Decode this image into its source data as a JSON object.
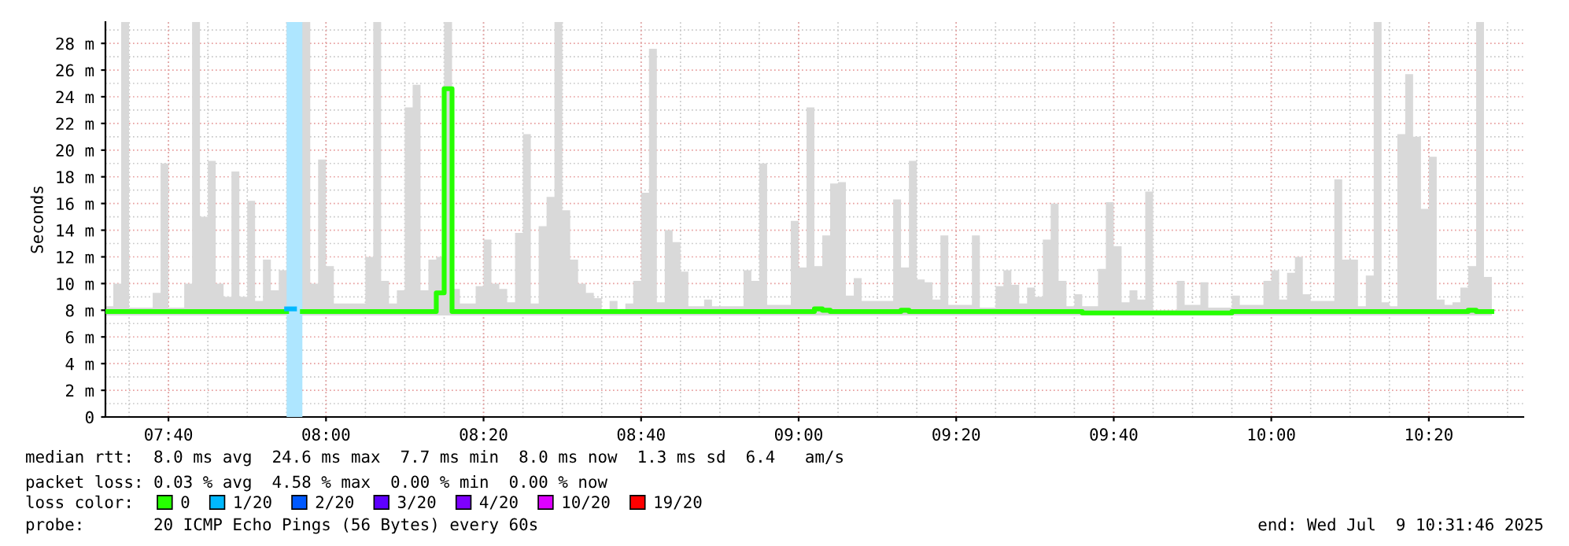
{
  "chart_data": {
    "type": "step",
    "ylabel": "Seconds",
    "legend_title": "loss color:",
    "legend": "bottom",
    "grid": true,
    "x": [
      "2025-07-09T07:32",
      "2025-07-09T07:33",
      "2025-07-09T07:34",
      "2025-07-09T07:35",
      "2025-07-09T07:38",
      "2025-07-09T07:39",
      "2025-07-09T07:40",
      "2025-07-09T07:42",
      "2025-07-09T07:43",
      "2025-07-09T07:44",
      "2025-07-09T07:45",
      "2025-07-09T07:46",
      "2025-07-09T07:47",
      "2025-07-09T07:48",
      "2025-07-09T07:49",
      "2025-07-09T07:50",
      "2025-07-09T07:51",
      "2025-07-09T07:52",
      "2025-07-09T07:53",
      "2025-07-09T07:54",
      "2025-07-09T07:55",
      "2025-07-09T07:56",
      "2025-07-09T07:57",
      "2025-07-09T07:58",
      "2025-07-09T07:59",
      "2025-07-09T08:00",
      "2025-07-09T08:01",
      "2025-07-09T08:05",
      "2025-07-09T08:06",
      "2025-07-09T08:07",
      "2025-07-09T08:08",
      "2025-07-09T08:09",
      "2025-07-09T08:10",
      "2025-07-09T08:11",
      "2025-07-09T08:12",
      "2025-07-09T08:13",
      "2025-07-09T08:14",
      "2025-07-09T08:15",
      "2025-07-09T08:16",
      "2025-07-09T08:17",
      "2025-07-09T08:19",
      "2025-07-09T08:20",
      "2025-07-09T08:21",
      "2025-07-09T08:22",
      "2025-07-09T08:23",
      "2025-07-09T08:24",
      "2025-07-09T08:25",
      "2025-07-09T08:26",
      "2025-07-09T08:27",
      "2025-07-09T08:28",
      "2025-07-09T08:29",
      "2025-07-09T08:30",
      "2025-07-09T08:31",
      "2025-07-09T08:32",
      "2025-07-09T08:33",
      "2025-07-09T08:34",
      "2025-07-09T08:35",
      "2025-07-09T08:36",
      "2025-07-09T08:37",
      "2025-07-09T08:38",
      "2025-07-09T08:39",
      "2025-07-09T08:40",
      "2025-07-09T08:41",
      "2025-07-09T08:42",
      "2025-07-09T08:43",
      "2025-07-09T08:44",
      "2025-07-09T08:45",
      "2025-07-09T08:46",
      "2025-07-09T08:48",
      "2025-07-09T08:49",
      "2025-07-09T08:53",
      "2025-07-09T08:54",
      "2025-07-09T08:55",
      "2025-07-09T08:56",
      "2025-07-09T08:59",
      "2025-07-09T09:00",
      "2025-07-09T09:01",
      "2025-07-09T09:02",
      "2025-07-09T09:03",
      "2025-07-09T09:04",
      "2025-07-09T09:05",
      "2025-07-09T09:06",
      "2025-07-09T09:07",
      "2025-07-09T09:08",
      "2025-07-09T09:12",
      "2025-07-09T09:13",
      "2025-07-09T09:14",
      "2025-07-09T09:15",
      "2025-07-09T09:16",
      "2025-07-09T09:17",
      "2025-07-09T09:18",
      "2025-07-09T09:19",
      "2025-07-09T09:22",
      "2025-07-09T09:23",
      "2025-07-09T09:25",
      "2025-07-09T09:26",
      "2025-07-09T09:27",
      "2025-07-09T09:28",
      "2025-07-09T09:29",
      "2025-07-09T09:30",
      "2025-07-09T09:31",
      "2025-07-09T09:32",
      "2025-07-09T09:33",
      "2025-07-09T09:34",
      "2025-07-09T09:35",
      "2025-07-09T09:36",
      "2025-07-09T09:38",
      "2025-07-09T09:39",
      "2025-07-09T09:40",
      "2025-07-09T09:41",
      "2025-07-09T09:42",
      "2025-07-09T09:43",
      "2025-07-09T09:44",
      "2025-07-09T09:45",
      "2025-07-09T09:48",
      "2025-07-09T09:49",
      "2025-07-09T09:51",
      "2025-07-09T09:52",
      "2025-07-09T09:55",
      "2025-07-09T09:56",
      "2025-07-09T09:59",
      "2025-07-09T10:00",
      "2025-07-09T10:01",
      "2025-07-09T10:02",
      "2025-07-09T10:03",
      "2025-07-09T10:04",
      "2025-07-09T10:05",
      "2025-07-09T10:08",
      "2025-07-09T10:09",
      "2025-07-09T10:10",
      "2025-07-09T10:11",
      "2025-07-09T10:12",
      "2025-07-09T10:13",
      "2025-07-09T10:14",
      "2025-07-09T10:15",
      "2025-07-09T10:16",
      "2025-07-09T10:17",
      "2025-07-09T10:18",
      "2025-07-09T10:19",
      "2025-07-09T10:20",
      "2025-07-09T10:21",
      "2025-07-09T10:22",
      "2025-07-09T10:23",
      "2025-07-09T10:24",
      "2025-07-09T10:25",
      "2025-07-09T10:26",
      "2025-07-09T10:27",
      "2025-07-09T10:28"
    ],
    "series": [
      {
        "name": "0",
        "color": "#26ff00",
        "values": [
          7.9,
          7.9,
          7.9,
          7.9,
          7.9,
          7.9,
          7.9,
          7.9,
          7.9,
          7.9,
          7.9,
          7.9,
          7.9,
          7.9,
          7.9,
          7.9,
          7.9,
          7.9,
          7.9,
          7.9,
          null,
          null,
          7.9,
          7.9,
          7.9,
          7.9,
          7.9,
          7.9,
          7.9,
          7.9,
          7.9,
          7.9,
          7.9,
          7.9,
          7.9,
          7.9,
          9.3,
          24.6,
          7.9,
          7.9,
          7.9,
          7.9,
          7.9,
          7.9,
          7.9,
          7.9,
          7.9,
          7.9,
          7.9,
          7.9,
          7.9,
          7.9,
          7.9,
          7.9,
          7.9,
          7.9,
          7.9,
          7.9,
          7.9,
          7.9,
          7.9,
          7.9,
          7.9,
          7.9,
          7.9,
          7.9,
          7.9,
          7.9,
          7.9,
          7.9,
          7.9,
          7.9,
          7.9,
          7.9,
          7.9,
          7.9,
          7.9,
          8.1,
          8.0,
          7.9,
          7.9,
          7.9,
          7.9,
          7.9,
          7.9,
          8.0,
          7.9,
          7.9,
          7.9,
          7.9,
          7.9,
          7.9,
          7.9,
          7.9,
          7.9,
          7.9,
          7.9,
          7.9,
          7.9,
          7.9,
          7.9,
          7.9,
          7.9,
          7.9,
          7.9,
          7.8,
          7.8,
          7.8,
          7.8,
          7.8,
          7.8,
          7.8,
          7.8,
          7.8,
          7.8,
          7.8,
          7.8,
          7.8,
          7.9,
          7.9,
          7.9,
          7.9,
          7.9,
          7.9,
          7.9,
          7.9,
          7.9,
          7.9,
          7.9,
          7.9,
          7.9,
          7.9,
          7.9,
          7.9,
          7.9,
          7.9,
          7.9,
          7.9,
          7.9,
          7.9,
          7.9,
          7.9,
          7.9,
          7.9,
          8.0,
          7.9,
          7.9,
          7.9
        ],
        "lower": [
          7.6,
          7.6,
          7.6,
          7.6,
          7.6,
          7.6,
          7.6,
          7.6,
          7.6,
          7.6,
          7.6,
          7.6,
          7.6,
          7.6,
          7.6,
          7.6,
          7.6,
          7.6,
          7.6,
          7.6,
          7.6,
          7.6,
          7.6,
          7.6,
          7.6,
          7.6,
          7.6,
          7.6,
          7.6,
          7.6,
          7.6,
          7.6,
          7.6,
          7.6,
          7.6,
          7.6,
          7.6,
          7.6,
          7.6,
          7.6,
          7.6,
          7.6,
          7.6,
          7.6,
          7.6,
          7.6,
          7.6,
          7.6,
          7.6,
          7.6,
          7.6,
          7.6,
          7.6,
          7.6,
          7.6,
          7.6,
          7.6,
          7.6,
          7.6,
          7.6,
          7.6,
          7.6,
          7.6,
          7.6,
          7.6,
          7.6,
          7.6,
          7.6,
          7.6,
          7.6,
          7.6,
          7.6,
          7.6,
          7.6,
          7.6,
          7.6,
          7.6,
          7.6,
          7.6,
          7.6,
          7.6,
          7.6,
          7.6,
          7.6,
          7.6,
          7.6,
          7.6,
          7.6,
          7.6,
          7.6,
          7.6,
          7.6,
          7.6,
          7.6,
          7.6,
          7.6,
          7.6,
          7.6,
          7.6,
          7.6,
          7.6,
          7.6,
          7.6,
          7.6,
          7.6,
          7.6,
          7.6,
          7.6,
          7.6,
          7.6,
          7.6,
          7.6,
          7.6,
          7.6,
          7.6,
          7.6,
          7.6,
          7.6,
          7.6,
          7.6,
          7.6,
          7.6,
          7.6,
          7.6,
          7.6,
          7.6,
          7.6,
          7.6,
          7.6,
          7.6,
          7.6,
          7.6,
          7.6,
          7.6,
          7.6,
          7.6,
          7.6,
          7.6,
          7.6,
          7.6,
          7.6,
          7.6,
          7.6,
          7.6,
          7.6,
          7.6,
          7.6,
          7.6
        ],
        "upper": [
          8.3,
          10.0,
          29.6,
          8.2,
          9.3,
          19.0,
          8.2,
          10.0,
          29.6,
          15.0,
          19.2,
          10.0,
          9.0,
          18.4,
          9.0,
          16.2,
          8.7,
          11.8,
          9.5,
          11.0,
          29.6,
          29.6,
          29.6,
          10.0,
          19.3,
          11.3,
          8.5,
          12.0,
          29.6,
          10.2,
          8.5,
          9.5,
          23.2,
          24.9,
          9.5,
          11.8,
          12.0,
          29.6,
          9.6,
          8.5,
          9.8,
          13.3,
          10.0,
          9.6,
          8.6,
          13.8,
          21.2,
          8.5,
          14.3,
          16.5,
          29.6,
          15.5,
          11.8,
          10.0,
          9.3,
          8.9,
          8.0,
          8.7,
          8.1,
          8.5,
          10.2,
          16.8,
          27.6,
          8.6,
          14.0,
          13.1,
          10.9,
          8.3,
          8.8,
          8.3,
          11.0,
          10.2,
          19.0,
          8.4,
          14.7,
          11.2,
          23.2,
          11.3,
          13.6,
          17.5,
          17.6,
          9.1,
          10.4,
          8.7,
          16.3,
          11.2,
          19.2,
          10.3,
          10.1,
          8.8,
          13.6,
          8.4,
          13.6,
          8.2,
          9.8,
          11.0,
          9.9,
          8.5,
          9.7,
          9.0,
          13.3,
          16.0,
          10.2,
          8.3,
          9.2,
          8.3,
          11.1,
          16.1,
          12.8,
          8.6,
          9.5,
          8.8,
          16.9,
          8.0,
          10.2,
          8.4,
          10.1,
          8.2,
          9.1,
          8.4,
          10.2,
          11.0,
          8.8,
          10.8,
          12.0,
          9.2,
          8.7,
          17.8,
          11.8,
          11.8,
          8.3,
          10.6,
          29.6,
          8.6,
          8.3,
          21.2,
          25.7,
          21.0,
          15.6,
          19.5,
          8.8,
          8.4,
          8.6,
          9.7,
          11.3,
          29.6,
          10.5,
          10.5
        ]
      },
      {
        "name": "1/20",
        "type": "line",
        "color": "#00b8ff",
        "values": [
          null,
          null,
          null,
          null,
          null,
          null,
          null,
          null,
          null,
          null,
          null,
          null,
          null,
          null,
          null,
          null,
          null,
          null,
          null,
          null,
          8.1,
          8.1,
          null,
          null,
          null,
          null,
          null,
          null,
          null,
          null,
          null,
          null,
          null,
          null,
          null,
          null,
          null,
          null,
          null,
          null,
          null,
          null,
          null,
          null,
          null,
          null,
          null,
          null,
          null,
          null,
          null,
          null,
          null,
          null,
          null,
          null,
          null,
          null,
          null,
          null,
          null,
          null,
          null,
          null,
          null,
          null,
          null,
          null,
          null,
          null,
          null,
          null,
          null,
          null,
          null,
          null,
          null,
          null,
          null,
          null,
          null,
          null,
          null,
          null,
          null,
          null,
          null,
          null,
          null,
          null,
          null,
          null,
          null,
          null,
          null,
          null,
          null,
          null,
          null,
          null,
          null,
          null,
          null,
          null,
          null,
          null,
          null,
          null,
          null,
          null,
          null,
          null,
          null,
          null,
          null,
          null,
          null,
          null,
          null,
          null,
          null,
          null,
          null,
          null,
          null,
          null,
          null,
          null,
          null,
          null,
          null,
          null,
          null,
          null,
          null,
          null,
          null,
          null,
          null,
          null,
          null,
          null,
          null,
          null,
          null,
          null,
          null,
          null
        ]
      },
      {
        "name": "2/20",
        "color": "#0059ff",
        "values": [
          null,
          null,
          null,
          null,
          null,
          null,
          null,
          null,
          null,
          null,
          null,
          null,
          null,
          null,
          null,
          null,
          null,
          null,
          null,
          null,
          null,
          null,
          null,
          null,
          null,
          null,
          null,
          null,
          null,
          null,
          null,
          null,
          null,
          null,
          null,
          null,
          null,
          null,
          null,
          null,
          null,
          null,
          null,
          null,
          null,
          null,
          null,
          null,
          null,
          null,
          null,
          null,
          null,
          null,
          null,
          null,
          null,
          null,
          null,
          null,
          null,
          null,
          null,
          null,
          null,
          null,
          null,
          null,
          null,
          null,
          null,
          null,
          null,
          null,
          null,
          null,
          null,
          null,
          null,
          null,
          null,
          null,
          null,
          null,
          null,
          null,
          null,
          null,
          null,
          null,
          null,
          null,
          null,
          null,
          null,
          null,
          null,
          null,
          null,
          null,
          null,
          null,
          null,
          null,
          null,
          null,
          null,
          null,
          null,
          null,
          null,
          null,
          null,
          null,
          null,
          null,
          null,
          null,
          null,
          null,
          null,
          null,
          null,
          null,
          null,
          null,
          null,
          null,
          null,
          null,
          null,
          null,
          null,
          null,
          null,
          null,
          null,
          null,
          null,
          null,
          null,
          null,
          null,
          null,
          null,
          null,
          null,
          null
        ]
      },
      {
        "name": "3/20",
        "color": "#5e00ff",
        "values": [
          null,
          null,
          null,
          null,
          null,
          null,
          null,
          null,
          null,
          null,
          null,
          null,
          null,
          null,
          null,
          null,
          null,
          null,
          null,
          null,
          null,
          null,
          null,
          null,
          null,
          null,
          null,
          null,
          null,
          null,
          null,
          null,
          null,
          null,
          null,
          null,
          null,
          null,
          null,
          null,
          null,
          null,
          null,
          null,
          null,
          null,
          null,
          null,
          null,
          null,
          null,
          null,
          null,
          null,
          null,
          null,
          null,
          null,
          null,
          null,
          null,
          null,
          null,
          null,
          null,
          null,
          null,
          null,
          null,
          null,
          null,
          null,
          null,
          null,
          null,
          null,
          null,
          null,
          null,
          null,
          null,
          null,
          null,
          null,
          null,
          null,
          null,
          null,
          null,
          null,
          null,
          null,
          null,
          null,
          null,
          null,
          null,
          null,
          null,
          null,
          null,
          null,
          null,
          null,
          null,
          null,
          null,
          null,
          null,
          null,
          null,
          null,
          null,
          null,
          null,
          null,
          null,
          null,
          null,
          null,
          null,
          null,
          null,
          null,
          null,
          null,
          null,
          null,
          null,
          null,
          null,
          null,
          null,
          null,
          null,
          null,
          null,
          null,
          null,
          null,
          null,
          null,
          null,
          null,
          null,
          null,
          null,
          null
        ]
      },
      {
        "name": "4/20",
        "color": "#7e00ff",
        "values": [
          null,
          null,
          null,
          null,
          null,
          null,
          null,
          null,
          null,
          null,
          null,
          null,
          null,
          null,
          null,
          null,
          null,
          null,
          null,
          null,
          null,
          null,
          null,
          null,
          null,
          null,
          null,
          null,
          null,
          null,
          null,
          null,
          null,
          null,
          null,
          null,
          null,
          null,
          null,
          null,
          null,
          null,
          null,
          null,
          null,
          null,
          null,
          null,
          null,
          null,
          null,
          null,
          null,
          null,
          null,
          null,
          null,
          null,
          null,
          null,
          null,
          null,
          null,
          null,
          null,
          null,
          null,
          null,
          null,
          null,
          null,
          null,
          null,
          null,
          null,
          null,
          null,
          null,
          null,
          null,
          null,
          null,
          null,
          null,
          null,
          null,
          null,
          null,
          null,
          null,
          null,
          null,
          null,
          null,
          null,
          null,
          null,
          null,
          null,
          null,
          null,
          null,
          null,
          null,
          null,
          null,
          null,
          null,
          null,
          null,
          null,
          null,
          null,
          null,
          null,
          null,
          null,
          null,
          null,
          null,
          null,
          null,
          null,
          null,
          null,
          null,
          null,
          null,
          null,
          null,
          null,
          null,
          null,
          null,
          null,
          null,
          null,
          null,
          null,
          null,
          null,
          null,
          null,
          null,
          null,
          null,
          null,
          null
        ]
      },
      {
        "name": "10/20",
        "color": "#dd00ff",
        "values": [
          null,
          null,
          null,
          null,
          null,
          null,
          null,
          null,
          null,
          null,
          null,
          null,
          null,
          null,
          null,
          null,
          null,
          null,
          null,
          null,
          null,
          null,
          null,
          null,
          null,
          null,
          null,
          null,
          null,
          null,
          null,
          null,
          null,
          null,
          null,
          null,
          null,
          null,
          null,
          null,
          null,
          null,
          null,
          null,
          null,
          null,
          null,
          null,
          null,
          null,
          null,
          null,
          null,
          null,
          null,
          null,
          null,
          null,
          null,
          null,
          null,
          null,
          null,
          null,
          null,
          null,
          null,
          null,
          null,
          null,
          null,
          null,
          null,
          null,
          null,
          null,
          null,
          null,
          null,
          null,
          null,
          null,
          null,
          null,
          null,
          null,
          null,
          null,
          null,
          null,
          null,
          null,
          null,
          null,
          null,
          null,
          null,
          null,
          null,
          null,
          null,
          null,
          null,
          null,
          null,
          null,
          null,
          null,
          null,
          null,
          null,
          null,
          null,
          null,
          null,
          null,
          null,
          null,
          null,
          null,
          null,
          null,
          null,
          null,
          null,
          null,
          null,
          null,
          null,
          null,
          null,
          null,
          null,
          null,
          null,
          null,
          null,
          null,
          null,
          null,
          null,
          null,
          null,
          null,
          null,
          null,
          null,
          null
        ]
      },
      {
        "name": "19/20",
        "color": "#ff0000",
        "values": [
          null,
          null,
          null,
          null,
          null,
          null,
          null,
          null,
          null,
          null,
          null,
          null,
          null,
          null,
          null,
          null,
          null,
          null,
          null,
          null,
          null,
          null,
          null,
          null,
          null,
          null,
          null,
          null,
          null,
          null,
          null,
          null,
          null,
          null,
          null,
          null,
          null,
          null,
          null,
          null,
          null,
          null,
          null,
          null,
          null,
          null,
          null,
          null,
          null,
          null,
          null,
          null,
          null,
          null,
          null,
          null,
          null,
          null,
          null,
          null,
          null,
          null,
          null,
          null,
          null,
          null,
          null,
          null,
          null,
          null,
          null,
          null,
          null,
          null,
          null,
          null,
          null,
          null,
          null,
          null,
          null,
          null,
          null,
          null,
          null,
          null,
          null,
          null,
          null,
          null,
          null,
          null,
          null,
          null,
          null,
          null,
          null,
          null,
          null,
          null,
          null,
          null,
          null,
          null,
          null,
          null,
          null,
          null,
          null,
          null,
          null,
          null,
          null,
          null,
          null,
          null,
          null,
          null,
          null,
          null,
          null,
          null,
          null,
          null,
          null,
          null,
          null,
          null,
          null,
          null,
          null,
          null,
          null,
          null,
          null,
          null,
          null,
          null,
          null,
          null,
          null,
          null,
          null,
          null,
          null,
          null,
          null,
          null
        ]
      }
    ],
    "bands": [
      {
        "axis": "x",
        "from": "2025-07-09T07:55",
        "to": "2025-07-09T07:57",
        "color": "#aee6ff"
      }
    ],
    "xlim": [
      "2025-07-09T07:32",
      "2025-07-09T10:32"
    ],
    "xticks": [
      {
        "value": "2025-07-09T07:40",
        "label": "07:40"
      },
      {
        "value": "2025-07-09T08:00",
        "label": "08:00"
      },
      {
        "value": "2025-07-09T08:20",
        "label": "08:20"
      },
      {
        "value": "2025-07-09T08:40",
        "label": "08:40"
      },
      {
        "value": "2025-07-09T09:00",
        "label": "09:00"
      },
      {
        "value": "2025-07-09T09:20",
        "label": "09:20"
      },
      {
        "value": "2025-07-09T09:40",
        "label": "09:40"
      },
      {
        "value": "2025-07-09T10:00",
        "label": "10:00"
      },
      {
        "value": "2025-07-09T10:20",
        "label": "10:20"
      }
    ],
    "ylim": [
      0,
      29.6
    ],
    "yticks": [
      0,
      {
        "value": 2,
        "label": "2 m"
      },
      {
        "value": 4,
        "label": "4 m"
      },
      {
        "value": 6,
        "label": "6 m"
      },
      {
        "value": 8,
        "label": "8 m"
      },
      {
        "value": 10,
        "label": "10 m"
      },
      {
        "value": 12,
        "label": "12 m"
      },
      {
        "value": 14,
        "label": "14 m"
      },
      {
        "value": 16,
        "label": "16 m"
      },
      {
        "value": 18,
        "label": "18 m"
      },
      {
        "value": 20,
        "label": "20 m"
      },
      {
        "value": 22,
        "label": "22 m"
      },
      {
        "value": 24,
        "label": "24 m"
      },
      {
        "value": 26,
        "label": "26 m"
      },
      {
        "value": 28,
        "label": "28 m"
      }
    ],
    "annotations": [
      "median rtt:  8.0 ms avg  24.6 ms max  7.7 ms min  8.0 ms now  1.3 ms sd  6.4   am/s",
      "packet loss: 0.03 % avg  4.58 % max  0.00 % min  0.00 % now",
      "probe:       20 ICMP Echo Pings (56 Bytes) every 60s",
      "end: Wed Jul  9 10:31:46 2025"
    ]
  }
}
